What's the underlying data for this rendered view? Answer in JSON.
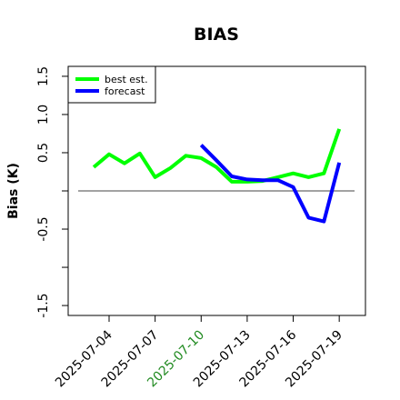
{
  "chart_data": {
    "type": "line",
    "title": "BIAS",
    "ylabel": "Bias (K)",
    "x": [
      "2025-07-03",
      "2025-07-04",
      "2025-07-05",
      "2025-07-06",
      "2025-07-07",
      "2025-07-08",
      "2025-07-09",
      "2025-07-10",
      "2025-07-11",
      "2025-07-12",
      "2025-07-13",
      "2025-07-14",
      "2025-07-15",
      "2025-07-16",
      "2025-07-17",
      "2025-07-18",
      "2025-07-19"
    ],
    "series": [
      {
        "name": "best est.",
        "color": "#00ff00",
        "values": [
          0.31,
          0.48,
          0.36,
          0.49,
          0.18,
          0.3,
          0.46,
          0.43,
          0.31,
          0.12,
          0.12,
          0.13,
          0.18,
          0.23,
          0.18,
          0.23,
          0.81
        ]
      },
      {
        "name": "forecast",
        "color": "#0000ff",
        "values": [
          null,
          null,
          null,
          null,
          null,
          null,
          null,
          0.6,
          0.4,
          0.19,
          0.15,
          0.14,
          0.14,
          0.05,
          -0.35,
          -0.4,
          0.37
        ]
      }
    ],
    "xlim": [
      "2025-07-01T08:00",
      "2025-07-20T17:00"
    ],
    "xticks": [
      "2025-07-04",
      "2025-07-07",
      "2025-07-10",
      "2025-07-13",
      "2025-07-16",
      "2025-07-19"
    ],
    "highlight_xtick": "2025-07-10",
    "highlight_color": "#228b22",
    "ylim": [
      -1.63,
      1.63
    ],
    "yticks": [
      -1.5,
      -0.5,
      0.5,
      {
        "value": 1,
        "label": "1.0"
      },
      1.5
    ],
    "yminor_ticks": [
      -1,
      0
    ],
    "hline": 0,
    "legend": "top-left"
  }
}
